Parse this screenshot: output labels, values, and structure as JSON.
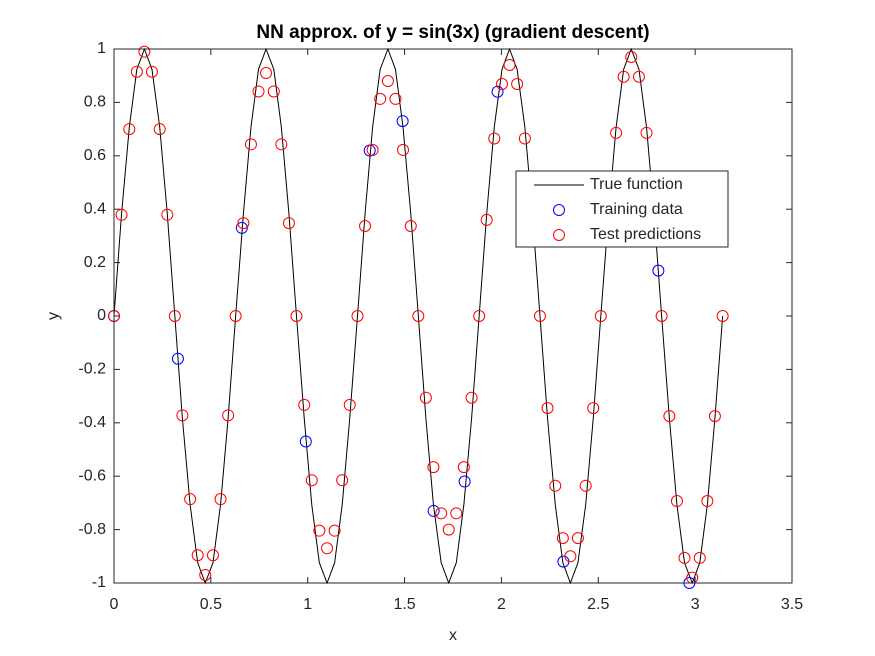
{
  "chart_data": {
    "type": "line",
    "title": "NN approx. of y = sin(3x) (gradient descent)",
    "x_label": "x",
    "y_label": "y",
    "xlim": [
      0,
      3.5
    ],
    "xticks": [
      0,
      0.5,
      1,
      1.5,
      2,
      2.5,
      3,
      3.5
    ],
    "ylim": [
      -1,
      1
    ],
    "yticks": [
      -1,
      -0.8,
      -0.6,
      -0.4,
      -0.2,
      0,
      0.2,
      0.4,
      0.6,
      0.8,
      1
    ],
    "grid": false,
    "legend_position": "upper right",
    "series": [
      {
        "name": "True function",
        "style": "line",
        "color": "#000000",
        "x": [
          0,
          0.039,
          0.079,
          0.118,
          0.157,
          0.196,
          0.236,
          0.275,
          0.314,
          0.353,
          0.393,
          0.432,
          0.471,
          0.511,
          0.55,
          0.589,
          0.628,
          0.668,
          0.707,
          0.746,
          0.785,
          0.825,
          0.864,
          0.903,
          0.942,
          0.982,
          1.021,
          1.06,
          1.1,
          1.139,
          1.178,
          1.217,
          1.257,
          1.296,
          1.335,
          1.374,
          1.414,
          1.453,
          1.492,
          1.532,
          1.571,
          1.61,
          1.649,
          1.689,
          1.728,
          1.767,
          1.806,
          1.846,
          1.885,
          1.924,
          1.963,
          2.003,
          2.042,
          2.081,
          2.121,
          2.16,
          2.199,
          2.238,
          2.278,
          2.317,
          2.356,
          2.395,
          2.435,
          2.474,
          2.513,
          2.553,
          2.592,
          2.631,
          2.67,
          2.71,
          2.749,
          2.788,
          2.827,
          2.867,
          2.906,
          2.945,
          2.985,
          3.024,
          3.063,
          3.102,
          3.142
        ],
        "values": [
          0,
          0.383,
          0.707,
          0.924,
          1,
          0.924,
          0.707,
          0.383,
          0,
          -0.383,
          -0.707,
          -0.924,
          -1,
          -0.924,
          -0.707,
          -0.383,
          0,
          0.383,
          0.707,
          0.924,
          1,
          0.924,
          0.707,
          0.383,
          0,
          -0.383,
          -0.707,
          -0.924,
          -1,
          -0.924,
          -0.707,
          -0.383,
          0,
          0.383,
          0.707,
          0.924,
          1,
          0.924,
          0.707,
          0.383,
          0,
          -0.383,
          -0.707,
          -0.924,
          -1,
          -0.924,
          -0.707,
          -0.383,
          0,
          0.383,
          0.707,
          0.924,
          1,
          0.924,
          0.707,
          0.383,
          0,
          -0.383,
          -0.707,
          -0.924,
          -1,
          -0.924,
          -0.707,
          -0.383,
          0,
          0.383,
          0.707,
          0.924,
          1,
          0.924,
          0.707,
          0.383,
          0,
          -0.383,
          -0.707,
          -0.924,
          -1,
          -0.924,
          -0.707,
          -0.383,
          0
        ]
      },
      {
        "name": "Training data",
        "style": "circle",
        "color": "#0000ff",
        "x": [
          0,
          0.33,
          0.66,
          0.99,
          1.32,
          1.49,
          1.65,
          1.81,
          1.98,
          2.32,
          2.81,
          2.97
        ],
        "values": [
          0,
          -0.16,
          0.33,
          -0.47,
          0.62,
          0.73,
          -0.73,
          -0.62,
          0.84,
          -0.92,
          0.17,
          -1.0
        ]
      },
      {
        "name": "Test predictions",
        "style": "circle",
        "color": "#ff0000",
        "x": [
          0,
          0.039,
          0.079,
          0.118,
          0.157,
          0.196,
          0.236,
          0.275,
          0.314,
          0.353,
          0.393,
          0.432,
          0.471,
          0.511,
          0.55,
          0.589,
          0.628,
          0.668,
          0.707,
          0.746,
          0.785,
          0.825,
          0.864,
          0.903,
          0.942,
          0.982,
          1.021,
          1.06,
          1.1,
          1.139,
          1.178,
          1.217,
          1.257,
          1.296,
          1.335,
          1.374,
          1.414,
          1.453,
          1.492,
          1.532,
          1.571,
          1.61,
          1.649,
          1.689,
          1.728,
          1.767,
          1.806,
          1.846,
          1.885,
          1.924,
          1.963,
          2.003,
          2.042,
          2.081,
          2.121,
          2.16,
          2.199,
          2.238,
          2.278,
          2.317,
          2.356,
          2.395,
          2.435,
          2.474,
          2.513,
          2.553,
          2.592,
          2.631,
          2.67,
          2.71,
          2.749,
          2.788,
          2.827,
          2.867,
          2.906,
          2.945,
          2.985,
          3.024,
          3.063,
          3.102,
          3.142
        ],
        "values": [
          0,
          0.379,
          0.7,
          0.915,
          0.99,
          0.915,
          0.7,
          0.379,
          0,
          -0.372,
          -0.686,
          -0.896,
          -0.97,
          -0.896,
          -0.686,
          -0.372,
          0,
          0.348,
          0.643,
          0.841,
          0.91,
          0.841,
          0.643,
          0.348,
          0,
          -0.333,
          -0.615,
          -0.804,
          -0.87,
          -0.804,
          -0.615,
          -0.333,
          0,
          0.337,
          0.622,
          0.813,
          0.88,
          0.813,
          0.622,
          0.337,
          0,
          -0.306,
          -0.566,
          -0.739,
          -0.8,
          -0.739,
          -0.566,
          -0.306,
          0,
          0.36,
          0.665,
          0.869,
          0.94,
          0.869,
          0.665,
          0.36,
          0,
          -0.345,
          -0.636,
          -0.832,
          -0.9,
          -0.832,
          -0.636,
          -0.345,
          0,
          0.372,
          0.686,
          0.896,
          0.97,
          0.896,
          0.686,
          0.372,
          0,
          -0.375,
          -0.693,
          -0.906,
          -0.98,
          -0.906,
          -0.693,
          -0.375,
          0
        ]
      }
    ]
  }
}
